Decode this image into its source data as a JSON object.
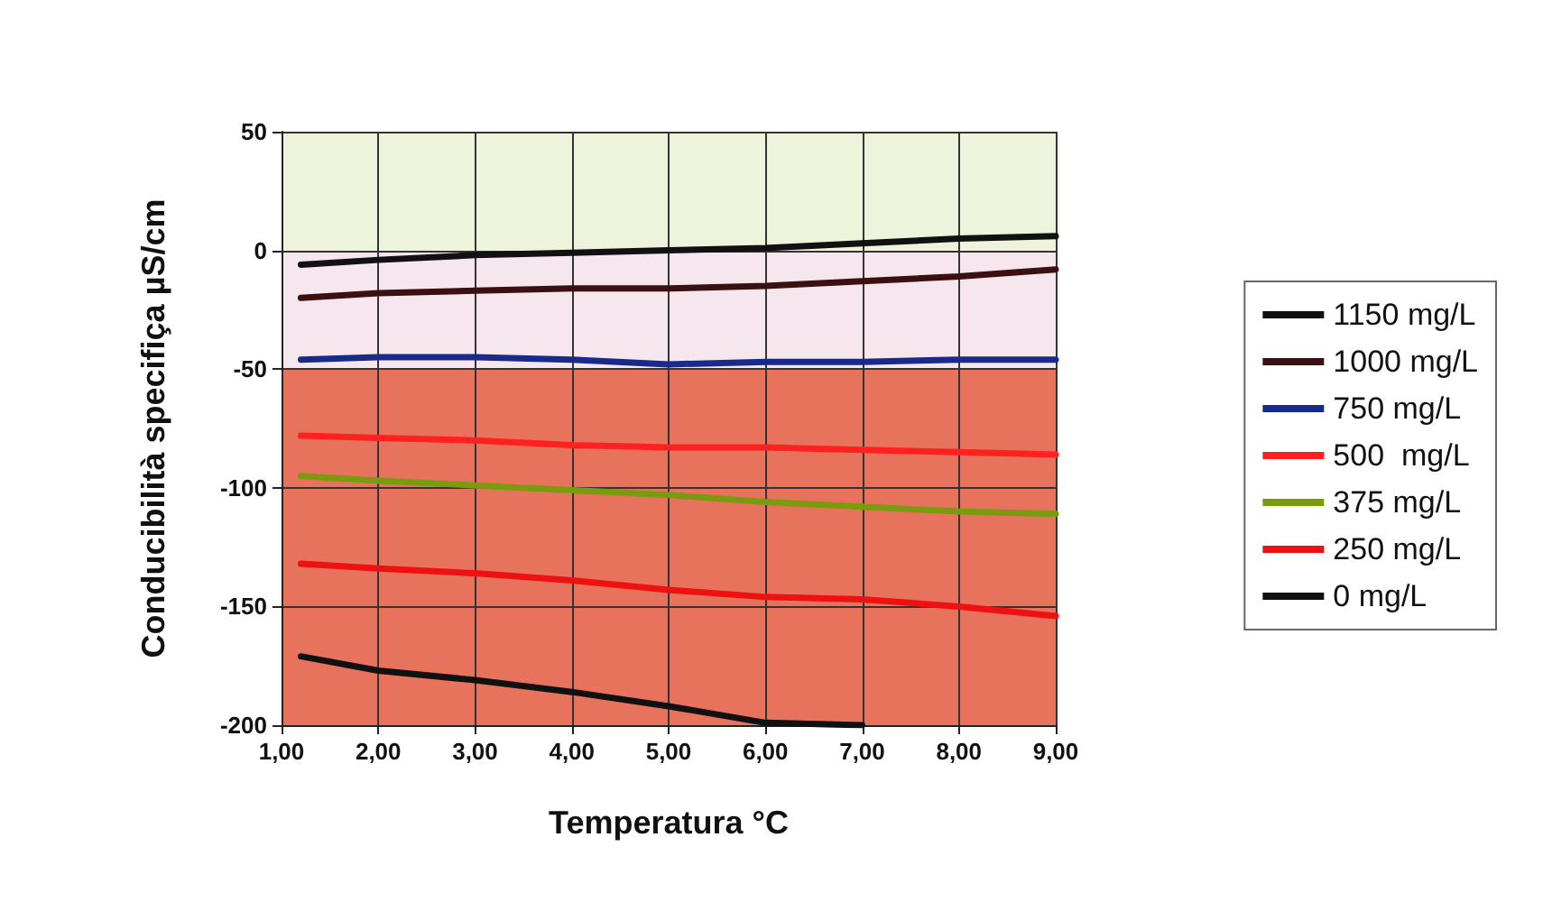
{
  "chart_data": {
    "type": "line",
    "xlabel": "Temperatura °C",
    "ylabel": "Conducibilità specifiça µS/cm",
    "x": [
      1.2,
      2,
      3,
      4,
      5,
      6,
      7,
      8,
      9
    ],
    "series": [
      {
        "name": "1150 mg/L",
        "color": "#111111",
        "values": [
          -6,
          -4,
          -2,
          -1,
          0,
          1,
          3,
          5,
          6
        ]
      },
      {
        "name": "1000 mg/L",
        "color": "#3a1010",
        "values": [
          -20,
          -18,
          -17,
          -16,
          -16,
          -15,
          -13,
          -11,
          -8
        ]
      },
      {
        "name": "750 mg/L",
        "color": "#1a2a8a",
        "values": [
          -46,
          -45,
          -45,
          -46,
          -48,
          -47,
          -47,
          -46,
          -46
        ]
      },
      {
        "name": "500  mg/L",
        "color": "#ff2020",
        "values": [
          -78,
          -79,
          -80,
          -82,
          -83,
          -83,
          -84,
          -85,
          -86
        ]
      },
      {
        "name": "375 mg/L",
        "color": "#7a9a10",
        "values": [
          -95,
          -97,
          -99,
          -101,
          -103,
          -106,
          -108,
          -110,
          -111
        ]
      },
      {
        "name": "250 mg/L",
        "color": "#ee1111",
        "values": [
          -132,
          -134,
          -136,
          -139,
          -143,
          -146,
          -147,
          -150,
          -154
        ]
      },
      {
        "name": "0 mg/L",
        "color": "#111111",
        "values": [
          -171,
          -177,
          -181,
          -186,
          -192,
          -199,
          -200,
          null,
          null
        ]
      }
    ],
    "xlim": [
      1,
      9
    ],
    "ylim": [
      -200,
      50
    ],
    "xticks": [
      {
        "value": 1,
        "label": "1,00"
      },
      {
        "value": 2,
        "label": "2,00"
      },
      {
        "value": 3,
        "label": "3,00"
      },
      {
        "value": 4,
        "label": "4,00"
      },
      {
        "value": 5,
        "label": "5,00"
      },
      {
        "value": 6,
        "label": "6,00"
      },
      {
        "value": 7,
        "label": "7,00"
      },
      {
        "value": 8,
        "label": "8,00"
      },
      {
        "value": 9,
        "label": "9,00"
      }
    ],
    "yticks": [
      -200,
      -150,
      -100,
      -50,
      0,
      50
    ],
    "bands": [
      {
        "axis": "y",
        "from": 0,
        "to": 50,
        "color": "#eef3dc"
      },
      {
        "axis": "y",
        "from": -50,
        "to": 0,
        "color": "#f6e6ee"
      },
      {
        "axis": "y",
        "from": -200,
        "to": -50,
        "color": "#e8735c"
      }
    ],
    "grid": true,
    "legend": "right",
    "marker": "none",
    "line_style": "solid"
  }
}
